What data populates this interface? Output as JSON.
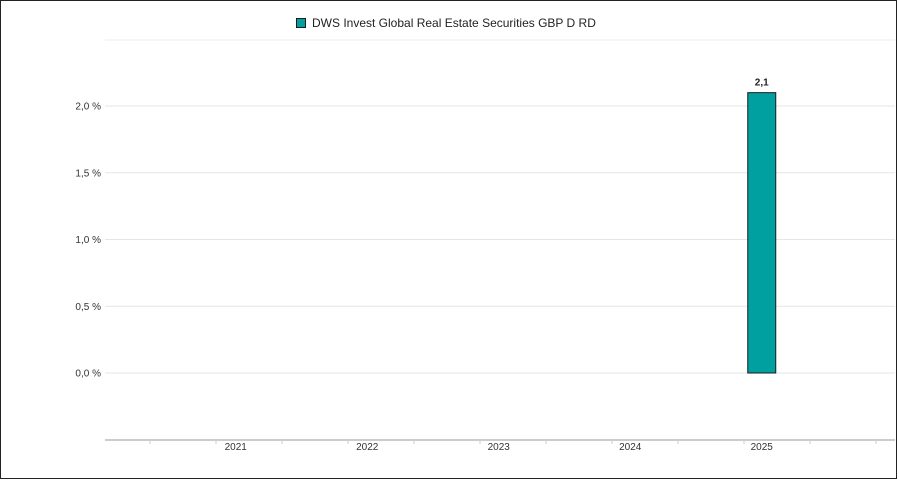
{
  "chart_data": {
    "type": "bar",
    "title": "",
    "xlabel": "",
    "ylabel": "",
    "categories": [
      "2021",
      "2022",
      "2023",
      "2024",
      "2025"
    ],
    "series": [
      {
        "name": "DWS Invest Global Real Estate Securities GBP D RD",
        "color": "#00a0a0",
        "values": [
          null,
          null,
          null,
          null,
          2.1
        ],
        "data_labels": [
          "",
          "",
          "",
          "",
          "2,1"
        ]
      }
    ],
    "y_ticks": [
      {
        "value": 0.0,
        "label": "0,0 %"
      },
      {
        "value": 0.5,
        "label": "0,5 %"
      },
      {
        "value": 1.0,
        "label": "1,0 %"
      },
      {
        "value": 1.5,
        "label": "1,5 %"
      },
      {
        "value": 2.0,
        "label": "2,0 %"
      }
    ],
    "ylim": [
      -0.5,
      2.5
    ],
    "grid": true,
    "legend_position": "top-center"
  }
}
